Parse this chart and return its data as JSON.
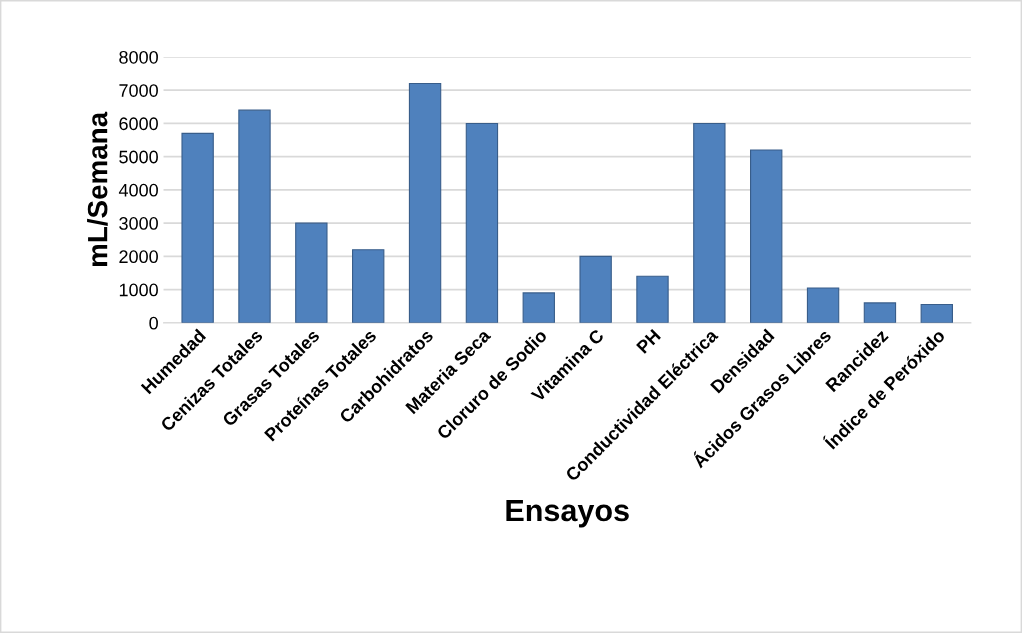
{
  "chart_data": {
    "type": "bar",
    "xlabel": "Ensayos",
    "ylabel": "mL/Semana",
    "categories": [
      "Humedad",
      "Cenizas Totales",
      "Grasas Totales",
      "Proteínas Totales",
      "Carbohidratos",
      "Materia Seca",
      "Cloruro de Sodio",
      "Vitamina C",
      "PH",
      "Conductividad Eléctrica",
      "Densidad",
      "Ácidos Grasos Libres",
      "Rancidez",
      "Índice de Peróxido"
    ],
    "values": [
      5700,
      6400,
      3000,
      2200,
      7200,
      6000,
      900,
      2000,
      1400,
      6000,
      5200,
      1050,
      600,
      550
    ],
    "color": "#4f81bd",
    "ylim": [
      0,
      8000
    ],
    "yticks": [
      0,
      1000,
      2000,
      3000,
      4000,
      5000,
      6000,
      7000,
      8000
    ],
    "grid": "y",
    "legend": false
  }
}
